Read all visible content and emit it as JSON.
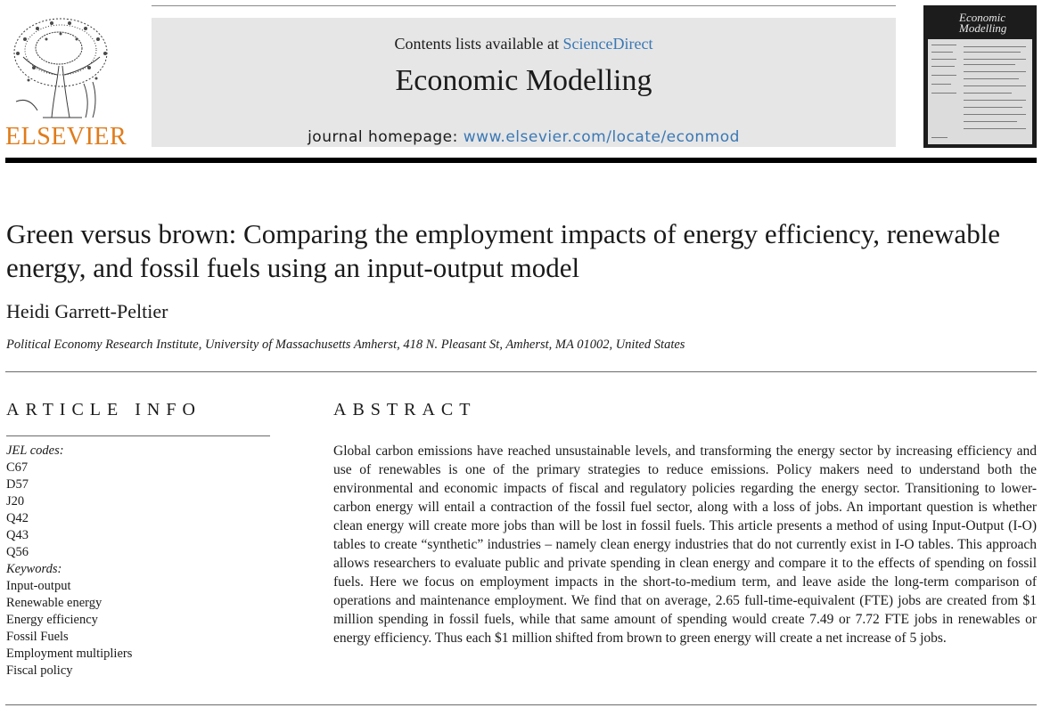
{
  "header": {
    "publisher_logo_text": "ELSEVIER",
    "contents_prefix": "Contents lists available at ",
    "contents_link": "ScienceDirect",
    "journal_name": "Economic Modelling",
    "homepage_prefix": "journal homepage: ",
    "homepage_link": "www.elsevier.com/locate/econmod",
    "cover_title": "Economic Modelling",
    "colors": {
      "link": "#3a78b5",
      "elsevier_orange": "#e07b1a",
      "banner_bg": "#e6e6e6"
    }
  },
  "article": {
    "title": "Green versus brown: Comparing the employment impacts of energy efficiency, renewable energy, and fossil fuels using an input-output model",
    "author": "Heidi Garrett-Peltier",
    "affiliation": "Political Economy Research Institute, University of Massachusetts Amherst, 418 N. Pleasant St, Amherst, MA 01002, United States"
  },
  "article_info": {
    "heading": "ARTICLE INFO",
    "jel_label": "JEL codes:",
    "jel_codes": [
      "C67",
      "D57",
      "J20",
      "Q42",
      "Q43",
      "Q56"
    ],
    "keywords_label": "Keywords:",
    "keywords": [
      "Input-output",
      "Renewable energy",
      "Energy efficiency",
      "Fossil Fuels",
      "Employment multipliers",
      "Fiscal policy"
    ]
  },
  "abstract": {
    "heading": "ABSTRACT",
    "text": "Global carbon emissions have reached unsustainable levels, and transforming the energy sector by increasing efficiency and use of renewables is one of the primary strategies to reduce emissions. Policy makers need to understand both the environmental and economic impacts of fiscal and regulatory policies regarding the energy sector. Transitioning to lower-carbon energy will entail a contraction of the fossil fuel sector, along with a loss of jobs. An important question is whether clean energy will create more jobs than will be lost in fossil fuels. This article presents a method of using Input-Output (I-O) tables to create “synthetic” industries – namely clean energy industries that do not currently exist in I-O tables. This approach allows researchers to evaluate public and private spending in clean energy and compare it to the effects of spending on fossil fuels. Here we focus on employment impacts in the short-to-medium term, and leave aside the long-term comparison of operations and maintenance employment. We find that on average, 2.65 full-time-equivalent (FTE) jobs are created from $1 million spending in fossil fuels, while that same amount of spending would create 7.49 or 7.72 FTE jobs in renewables or energy efficiency. Thus each $1 million shifted from brown to green energy will create a net increase of 5 jobs."
  }
}
